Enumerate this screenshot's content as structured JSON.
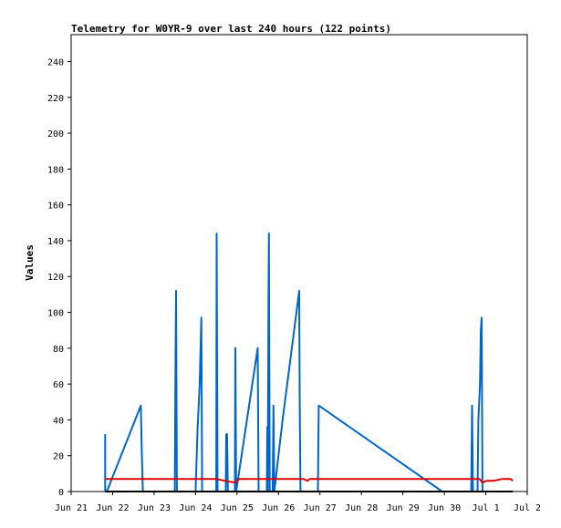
{
  "chart_data": {
    "type": "line",
    "title": "Telemetry for W0YR-9 over last 240 hours (122 points)",
    "xlabel": "",
    "ylabel": "Values",
    "ylim": [
      0,
      255
    ],
    "y_ticks": [
      0,
      20,
      40,
      60,
      80,
      100,
      120,
      140,
      160,
      180,
      200,
      220,
      240
    ],
    "x_unit": "days since Jun 21",
    "xlim": [
      0,
      11
    ],
    "x_ticks": [
      {
        "value": 0,
        "label": "Jun 21"
      },
      {
        "value": 1,
        "label": "Jun 22"
      },
      {
        "value": 2,
        "label": "Jun 23"
      },
      {
        "value": 3,
        "label": "Jun 24"
      },
      {
        "value": 4,
        "label": "Jun 25"
      },
      {
        "value": 5,
        "label": "Jun 26"
      },
      {
        "value": 6,
        "label": "Jun 27"
      },
      {
        "value": 7,
        "label": "Jun 28"
      },
      {
        "value": 8,
        "label": "Jun 29"
      },
      {
        "value": 9,
        "label": "Jun 30"
      },
      {
        "value": 10,
        "label": "Jul 1"
      },
      {
        "value": 11,
        "label": "Jul 2"
      }
    ],
    "grid": false,
    "legend": "none",
    "series": [
      {
        "color": "#0066cc",
        "points": [
          [
            0.82,
            32
          ],
          [
            0.82,
            0
          ],
          [
            0.86,
            0
          ],
          [
            1.68,
            48
          ],
          [
            1.7,
            25
          ],
          [
            1.73,
            0
          ],
          [
            2.5,
            0
          ],
          [
            2.52,
            80
          ],
          [
            2.53,
            112
          ],
          [
            2.55,
            0
          ],
          [
            3.0,
            0
          ],
          [
            3.05,
            35
          ],
          [
            3.1,
            60
          ],
          [
            3.14,
            97
          ],
          [
            3.16,
            0
          ],
          [
            3.5,
            0
          ],
          [
            3.51,
            144
          ],
          [
            3.53,
            0
          ],
          [
            3.73,
            0
          ],
          [
            3.74,
            32
          ],
          [
            3.76,
            32
          ],
          [
            3.78,
            0
          ],
          [
            3.95,
            0
          ],
          [
            3.96,
            80
          ],
          [
            3.98,
            0
          ],
          [
            4.5,
            80
          ],
          [
            4.52,
            0
          ],
          [
            4.72,
            0
          ],
          [
            4.73,
            36
          ],
          [
            4.74,
            0
          ],
          [
            4.76,
            110
          ],
          [
            4.77,
            144
          ],
          [
            4.79,
            0
          ],
          [
            4.86,
            0
          ],
          [
            4.88,
            48
          ],
          [
            4.9,
            0
          ],
          [
            5.1,
            40
          ],
          [
            5.5,
            112
          ],
          [
            5.51,
            55
          ],
          [
            5.53,
            0
          ],
          [
            5.95,
            0
          ],
          [
            5.97,
            48
          ],
          [
            8.95,
            0
          ],
          [
            9.05,
            0
          ],
          [
            9.65,
            0
          ],
          [
            9.67,
            48
          ],
          [
            9.69,
            0
          ],
          [
            9.8,
            0
          ],
          [
            9.82,
            40
          ],
          [
            9.86,
            60
          ],
          [
            9.88,
            90
          ],
          [
            9.9,
            97
          ],
          [
            9.92,
            0
          ]
        ]
      },
      {
        "color": "#dd0000",
        "points": [
          [
            0.82,
            7
          ],
          [
            2.0,
            7
          ],
          [
            3.0,
            7
          ],
          [
            3.5,
            7
          ],
          [
            3.7,
            6
          ],
          [
            3.95,
            5
          ],
          [
            4.05,
            7
          ],
          [
            5.0,
            7
          ],
          [
            5.6,
            7
          ],
          [
            5.7,
            6
          ],
          [
            5.75,
            7
          ],
          [
            8.0,
            7
          ],
          [
            9.2,
            7
          ],
          [
            9.85,
            7
          ],
          [
            9.92,
            5
          ],
          [
            10.02,
            6
          ],
          [
            10.2,
            6
          ],
          [
            10.4,
            7
          ],
          [
            10.6,
            7
          ],
          [
            10.65,
            6
          ]
        ]
      },
      {
        "color": "#000000",
        "points": [
          [
            0.82,
            0
          ],
          [
            10.65,
            0
          ]
        ]
      }
    ]
  }
}
